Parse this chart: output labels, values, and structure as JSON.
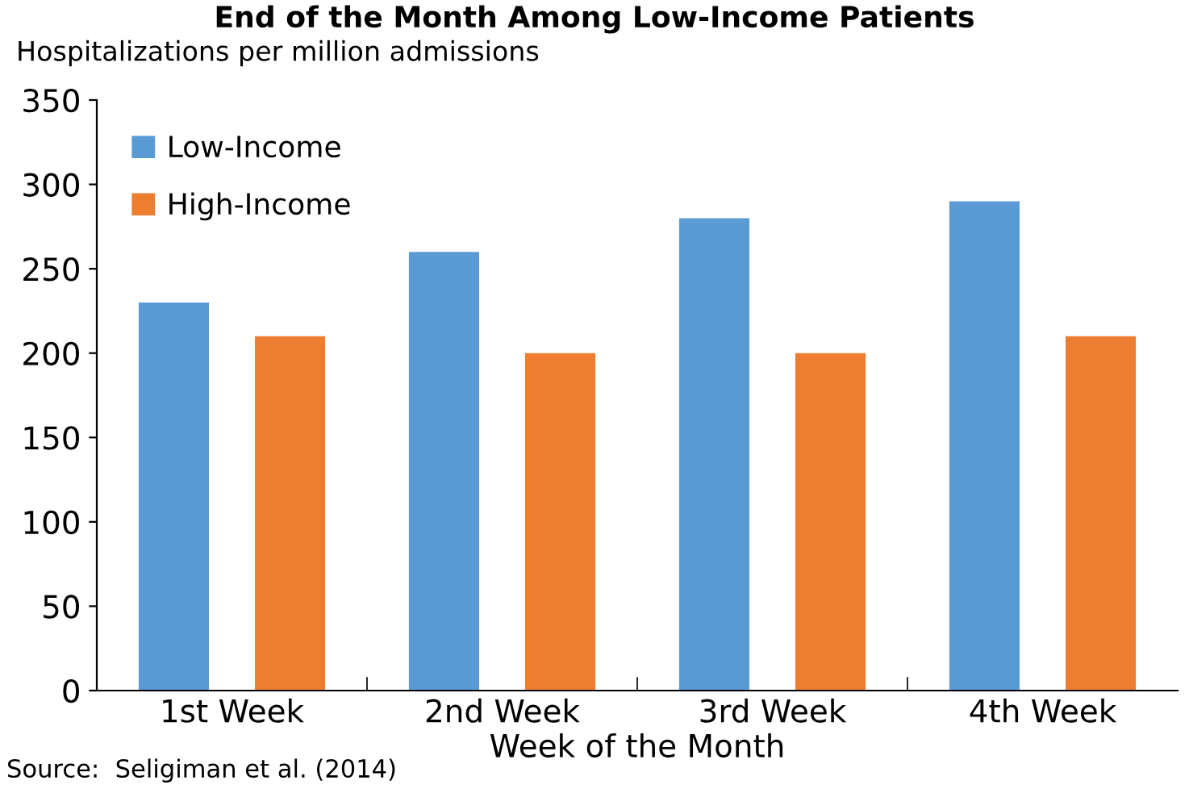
{
  "chart_data": {
    "type": "bar",
    "title": "End of the Month Among Low-Income Patients",
    "ylabel": "Hospitalizations per million admissions",
    "xlabel": "Week of the Month",
    "categories": [
      "1st Week",
      "2nd Week",
      "3rd Week",
      "4th Week"
    ],
    "series": [
      {
        "name": "Low-Income",
        "color": "#5b9bd5",
        "values": [
          230,
          260,
          280,
          290
        ]
      },
      {
        "name": "High-Income",
        "color": "#ed7d31",
        "values": [
          210,
          200,
          200,
          210
        ]
      }
    ],
    "ylim": [
      0,
      350
    ],
    "yticks": [
      0,
      50,
      100,
      150,
      200,
      250,
      300,
      350
    ],
    "grid": false,
    "legend": "top left",
    "annotations": [
      "Source:  Seligiman et al. (2014)"
    ]
  }
}
